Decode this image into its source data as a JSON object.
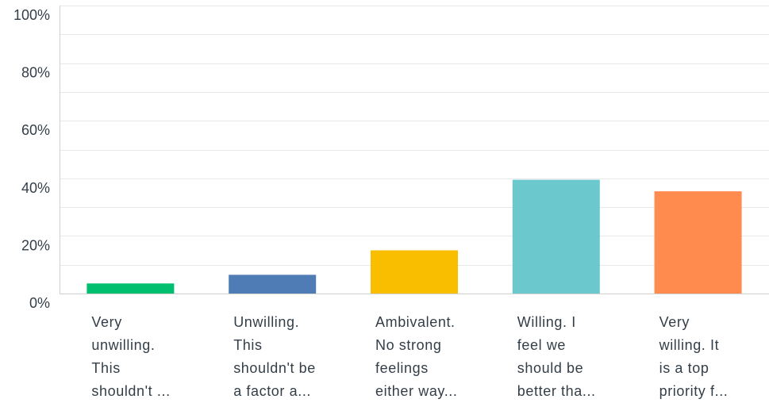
{
  "chart_data": {
    "type": "bar",
    "title": "",
    "xlabel": "",
    "ylabel": "",
    "ylim": [
      0,
      100
    ],
    "grid": true,
    "y_ticks": [
      "0%",
      "20%",
      "40%",
      "60%",
      "80%",
      "100%"
    ],
    "categories": [
      [
        "Very",
        "unwilling.",
        "This",
        "shouldn't ..."
      ],
      [
        "Unwilling.",
        "This",
        "shouldn't be",
        "a factor a..."
      ],
      [
        "Ambivalent.",
        "No strong",
        "feelings",
        "either way..."
      ],
      [
        "Willing. I",
        "feel we",
        "should be",
        "better tha..."
      ],
      [
        "Very",
        "willing. It",
        "is a top",
        "priority f..."
      ]
    ],
    "values": [
      3.5,
      6.5,
      15,
      39.5,
      35.5
    ],
    "colors": [
      "#00bf6f",
      "#507cb6",
      "#f9be00",
      "#6bc8cd",
      "#ff8b4f"
    ]
  }
}
